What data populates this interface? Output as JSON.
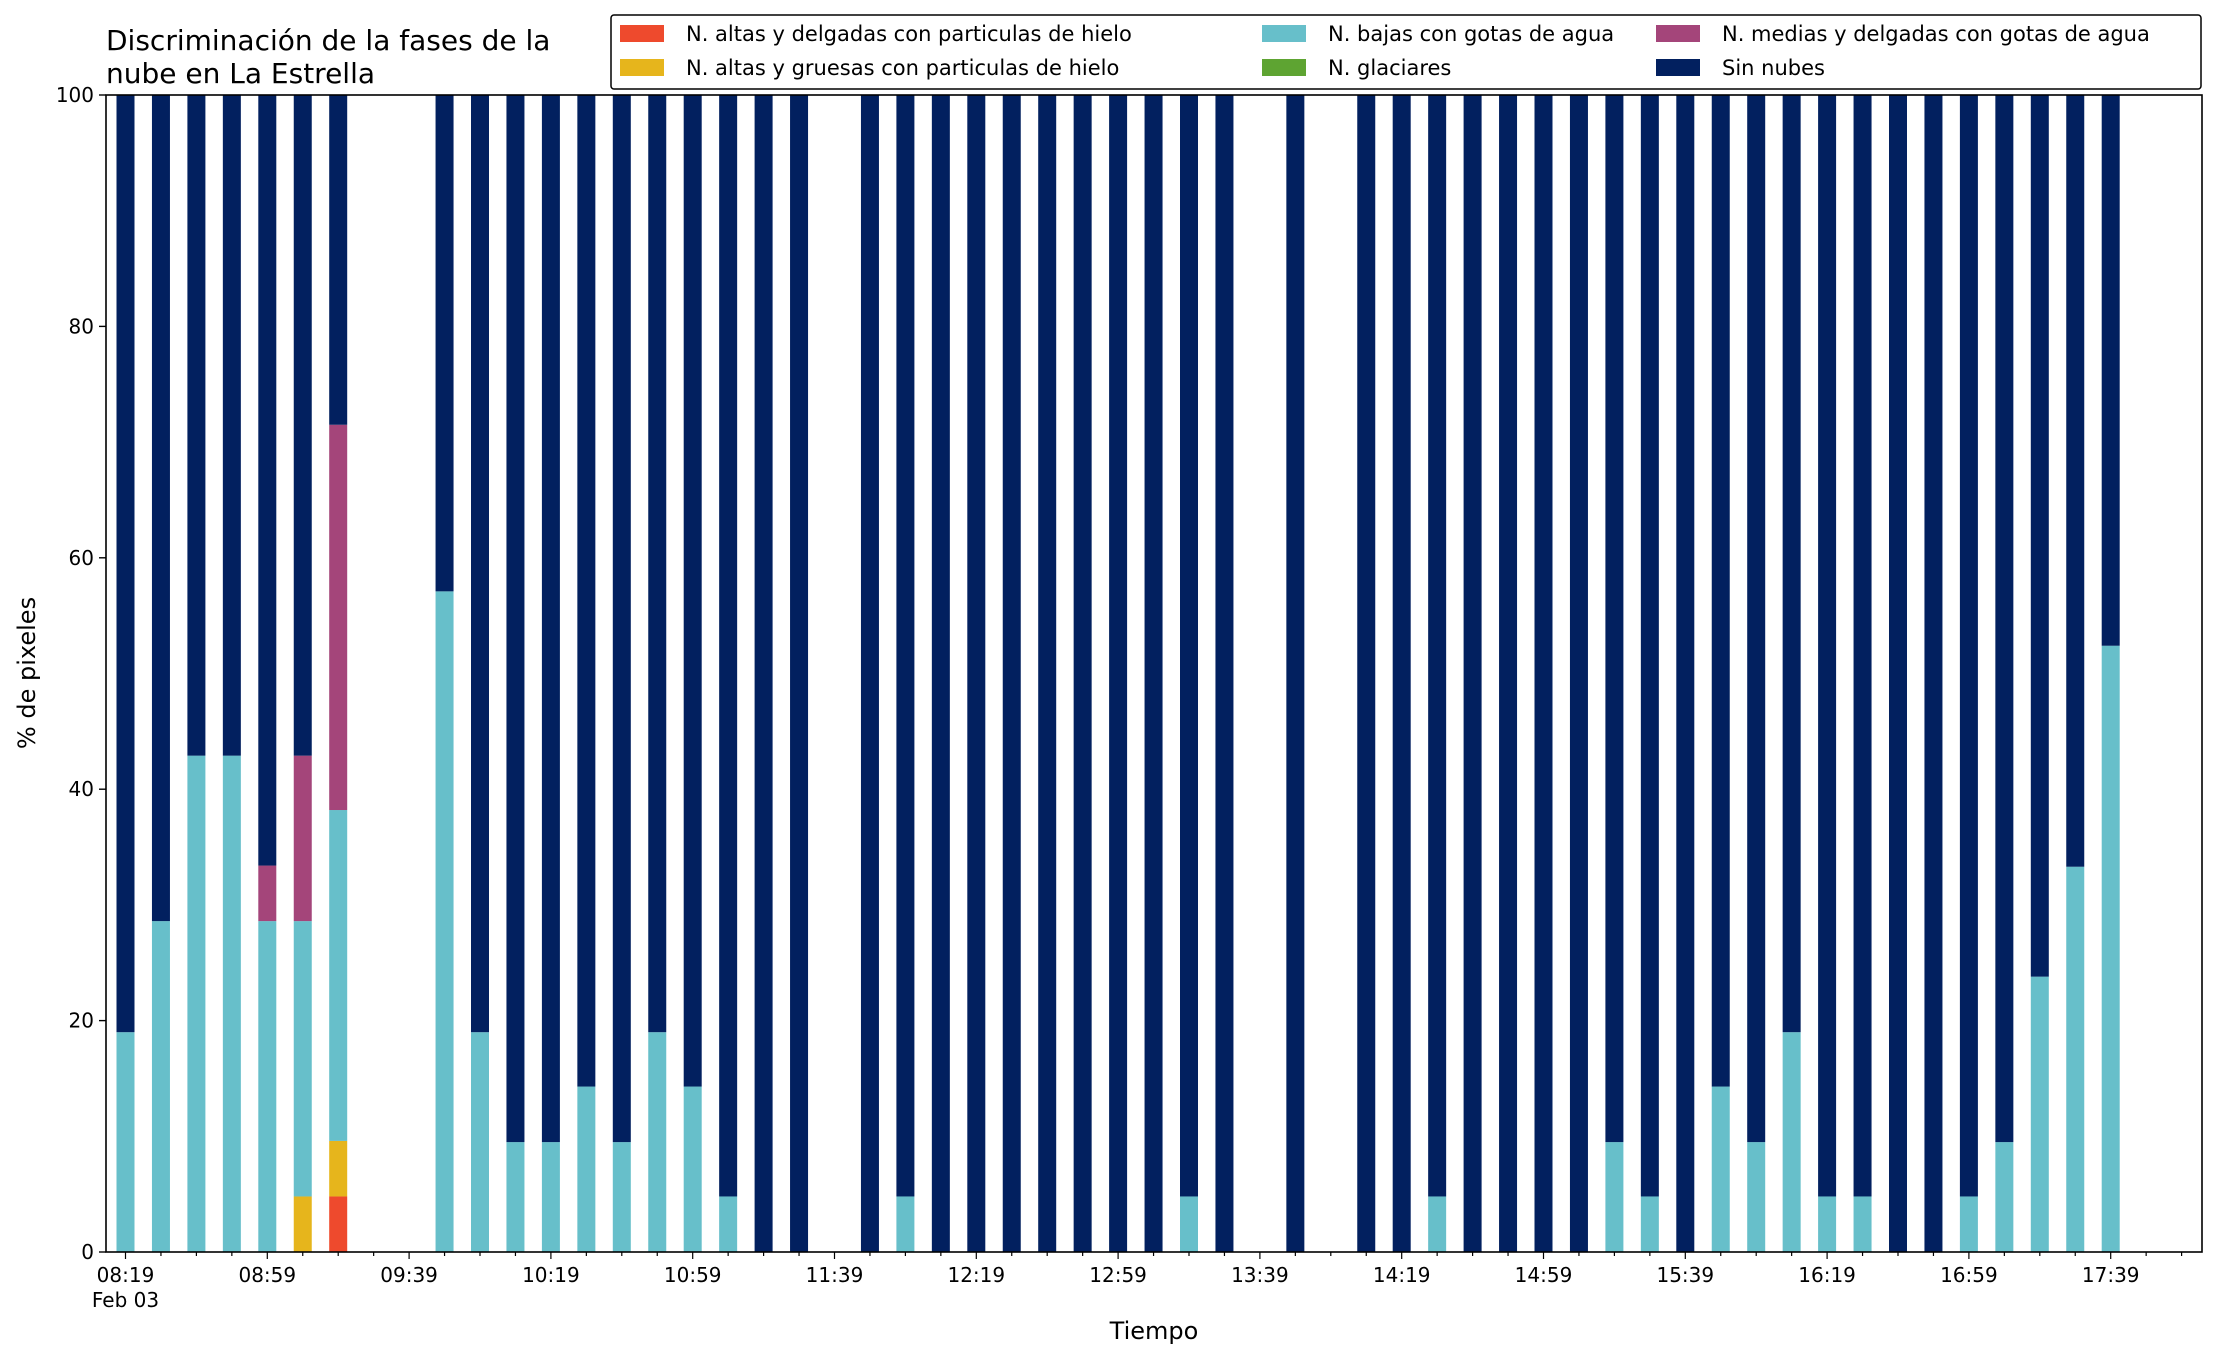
{
  "chart_data": {
    "type": "bar",
    "stacked": true,
    "title_lines": [
      "Discriminación de la fases de la",
      "nube en La Estrella"
    ],
    "xlabel": "Tiempo",
    "ylabel": "% de pixeles",
    "ylim": [
      0,
      100
    ],
    "yticks": [
      0,
      20,
      40,
      60,
      80,
      100
    ],
    "x_start": "08:19",
    "x_step_minutes": 10,
    "x_slots": 59,
    "x_tick_labels": [
      "08:19",
      "08:59",
      "09:39",
      "10:19",
      "10:59",
      "11:39",
      "12:19",
      "12:59",
      "13:39",
      "14:19",
      "14:59",
      "15:39",
      "16:19",
      "16:59",
      "17:39"
    ],
    "x_date_label": "Feb 03",
    "grid": false,
    "legend_position": "top-right",
    "series": [
      {
        "name": "N. altas y delgadas con particulas de hielo",
        "color": "#ee4a2d",
        "values": [
          0,
          0,
          0,
          0,
          0,
          0,
          4.8,
          null,
          null,
          0,
          0,
          0,
          0,
          0,
          0,
          0,
          0,
          0,
          0,
          0,
          null,
          0,
          0,
          0,
          0,
          0,
          0,
          0,
          0,
          0,
          0,
          null,
          0,
          null,
          0,
          0,
          0,
          0,
          0,
          0,
          0,
          0,
          0,
          0,
          0,
          0,
          0,
          0,
          0,
          0,
          0,
          0,
          0,
          0,
          0,
          0,
          0,
          null,
          null
        ]
      },
      {
        "name": "N. altas y gruesas con particulas de hielo",
        "color": "#e6b51c",
        "values": [
          0,
          0,
          0,
          0,
          0,
          4.8,
          4.8,
          null,
          null,
          0,
          0,
          0,
          0,
          0,
          0,
          0,
          0,
          0,
          0,
          0,
          null,
          0,
          0,
          0,
          0,
          0,
          0,
          0,
          0,
          0,
          0,
          null,
          0,
          null,
          0,
          0,
          0,
          0,
          0,
          0,
          0,
          0,
          0,
          0,
          0,
          0,
          0,
          0,
          0,
          0,
          0,
          0,
          0,
          0,
          0,
          0,
          0,
          null,
          null
        ]
      },
      {
        "name": "N. bajas con gotas de agua",
        "color": "#67bfca",
        "values": [
          19,
          28.6,
          42.9,
          42.9,
          28.6,
          23.8,
          28.6,
          null,
          null,
          57.1,
          19,
          9.5,
          9.5,
          14.3,
          9.5,
          19,
          14.3,
          4.8,
          0,
          0,
          null,
          0,
          4.8,
          0,
          0,
          0,
          0,
          0,
          0,
          0,
          4.8,
          0,
          null,
          0,
          null,
          0,
          0,
          4.8,
          0,
          0,
          0,
          0,
          9.5,
          4.8,
          0,
          14.3,
          9.5,
          19,
          4.8,
          4.8,
          0,
          0,
          4.8,
          9.5,
          23.8,
          33.3,
          52.4,
          null,
          null
        ]
      },
      {
        "name": "N. glaciares",
        "color": "#5ea432",
        "values": [
          0,
          0,
          0,
          0,
          0,
          0,
          0,
          null,
          null,
          0,
          0,
          0,
          0,
          0,
          0,
          0,
          0,
          0,
          0,
          0,
          null,
          0,
          0,
          0,
          0,
          0,
          0,
          0,
          0,
          0,
          0,
          null,
          0,
          null,
          0,
          0,
          0,
          0,
          0,
          0,
          0,
          0,
          0,
          0,
          0,
          0,
          0,
          0,
          0,
          0,
          0,
          0,
          0,
          0,
          0,
          0,
          0,
          null,
          null
        ]
      },
      {
        "name": "N. medias y delgadas con gotas de agua",
        "color": "#a4457a",
        "values": [
          0,
          0,
          0,
          0,
          4.8,
          14.3,
          33.3,
          null,
          null,
          0,
          0,
          0,
          0,
          0,
          0,
          0,
          0,
          0,
          0,
          0,
          null,
          0,
          0,
          0,
          0,
          0,
          0,
          0,
          0,
          0,
          0,
          null,
          0,
          null,
          0,
          0,
          0,
          0,
          0,
          0,
          0,
          0,
          0,
          0,
          0,
          0,
          0,
          0,
          0,
          0,
          0,
          0,
          0,
          0,
          0,
          0,
          0,
          null,
          null
        ]
      },
      {
        "name": "Sin nubes",
        "color": "#02205f",
        "values": [
          81,
          71.4,
          57.1,
          57.1,
          66.6,
          57.1,
          28.5,
          null,
          null,
          42.9,
          81,
          90.5,
          90.5,
          85.7,
          90.5,
          81,
          85.7,
          95.2,
          100,
          100,
          null,
          100,
          95.2,
          100,
          100,
          100,
          100,
          100,
          100,
          100,
          95.2,
          100,
          null,
          100,
          null,
          100,
          100,
          95.2,
          100,
          100,
          100,
          100,
          90.5,
          95.2,
          100,
          85.7,
          90.5,
          81,
          95.2,
          95.2,
          100,
          100,
          95.2,
          90.5,
          76.2,
          66.7,
          47.6,
          null,
          null
        ]
      }
    ]
  }
}
